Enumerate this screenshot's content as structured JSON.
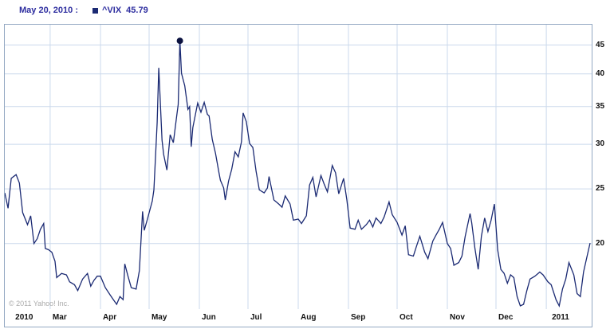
{
  "header": {
    "date_label": "May 20, 2010 :",
    "legend_symbol": "^VIX",
    "legend_value": "45.79"
  },
  "footer": {
    "copyright": "© 2011 Yahoo! Inc."
  },
  "colors": {
    "line": "#1b2a73",
    "marker": "#0b1240",
    "grid": "#cbd9ec",
    "border": "#93a8c2",
    "header_text": "#2d2d9f",
    "axis_text": "#111111",
    "copyright_text": "#aaaaaa"
  },
  "chart_data": {
    "type": "line",
    "title": "^VIX",
    "series_name": "^VIX",
    "legend": [
      {
        "name": "^VIX",
        "value": 45.79
      }
    ],
    "highlight_point": {
      "label": "May 20, 2010",
      "value": 45.79
    },
    "yscale": "log",
    "ylim": [
      15.3,
      48.9
    ],
    "yticks": [
      20,
      25,
      30,
      35,
      40,
      45
    ],
    "grid": true,
    "x_start_date": "2010-02-01",
    "x_range": [
      0,
      362
    ],
    "x_gridlines_days": [
      28,
      59,
      89,
      120,
      150,
      181,
      212,
      242,
      273,
      303,
      334
    ],
    "x_axis_labels": [
      {
        "label": "2010",
        "day": 5
      },
      {
        "label": "Mar",
        "day": 28
      },
      {
        "label": "Apr",
        "day": 59
      },
      {
        "label": "May",
        "day": 89
      },
      {
        "label": "Jun",
        "day": 120
      },
      {
        "label": "Jul",
        "day": 150
      },
      {
        "label": "Aug",
        "day": 181
      },
      {
        "label": "Sep",
        "day": 212
      },
      {
        "label": "Oct",
        "day": 242
      },
      {
        "label": "Nov",
        "day": 273
      },
      {
        "label": "Dec",
        "day": 303
      },
      {
        "label": "2011",
        "day": 336
      }
    ],
    "points": [
      [
        0,
        24.6
      ],
      [
        2,
        23.1
      ],
      [
        4,
        26.1
      ],
      [
        7,
        26.5
      ],
      [
        9,
        25.6
      ],
      [
        11,
        22.7
      ],
      [
        14,
        21.6
      ],
      [
        16,
        22.4
      ],
      [
        18,
        20.0
      ],
      [
        20,
        20.4
      ],
      [
        22,
        21.2
      ],
      [
        24,
        21.7
      ],
      [
        25,
        19.6
      ],
      [
        27,
        19.5
      ],
      [
        29,
        19.3
      ],
      [
        31,
        18.6
      ],
      [
        32,
        17.4
      ],
      [
        35,
        17.7
      ],
      [
        38,
        17.6
      ],
      [
        40,
        17.1
      ],
      [
        43,
        16.9
      ],
      [
        45,
        16.5
      ],
      [
        48,
        17.3
      ],
      [
        51,
        17.7
      ],
      [
        53,
        16.8
      ],
      [
        55,
        17.2
      ],
      [
        57,
        17.5
      ],
      [
        59,
        17.5
      ],
      [
        62,
        16.7
      ],
      [
        65,
        16.2
      ],
      [
        67,
        15.9
      ],
      [
        69,
        15.6
      ],
      [
        71,
        16.1
      ],
      [
        73,
        15.9
      ],
      [
        74,
        18.4
      ],
      [
        76,
        17.5
      ],
      [
        78,
        16.7
      ],
      [
        81,
        16.6
      ],
      [
        83,
        17.9
      ],
      [
        85,
        22.8
      ],
      [
        86,
        21.1
      ],
      [
        88,
        22.1
      ],
      [
        91,
        23.8
      ],
      [
        92,
        24.9
      ],
      [
        94,
        32.8
      ],
      [
        95,
        41.0
      ],
      [
        97,
        30.5
      ],
      [
        98,
        28.8
      ],
      [
        100,
        27.0
      ],
      [
        102,
        31.2
      ],
      [
        104,
        30.2
      ],
      [
        106,
        33.6
      ],
      [
        107,
        35.3
      ],
      [
        108,
        45.79
      ],
      [
        109,
        40.1
      ],
      [
        111,
        38.1
      ],
      [
        113,
        34.6
      ],
      [
        114,
        35.0
      ],
      [
        115,
        29.7
      ],
      [
        116,
        32.1
      ],
      [
        119,
        35.5
      ],
      [
        121,
        34.2
      ],
      [
        123,
        35.6
      ],
      [
        125,
        33.9
      ],
      [
        126,
        33.7
      ],
      [
        128,
        30.6
      ],
      [
        130,
        28.9
      ],
      [
        132,
        26.8
      ],
      [
        133,
        25.9
      ],
      [
        135,
        25.1
      ],
      [
        136,
        23.9
      ],
      [
        138,
        25.8
      ],
      [
        140,
        27.1
      ],
      [
        142,
        29.1
      ],
      [
        144,
        28.5
      ],
      [
        146,
        30.3
      ],
      [
        147,
        34.1
      ],
      [
        149,
        32.9
      ],
      [
        151,
        30.1
      ],
      [
        153,
        29.6
      ],
      [
        155,
        26.9
      ],
      [
        157,
        24.9
      ],
      [
        160,
        24.6
      ],
      [
        162,
        25.1
      ],
      [
        163,
        26.3
      ],
      [
        166,
        23.9
      ],
      [
        169,
        23.5
      ],
      [
        171,
        23.2
      ],
      [
        173,
        24.3
      ],
      [
        176,
        23.5
      ],
      [
        178,
        22.0
      ],
      [
        181,
        22.1
      ],
      [
        183,
        21.7
      ],
      [
        186,
        22.4
      ],
      [
        188,
        25.4
      ],
      [
        190,
        26.2
      ],
      [
        192,
        24.2
      ],
      [
        195,
        26.4
      ],
      [
        197,
        25.5
      ],
      [
        199,
        24.7
      ],
      [
        202,
        27.5
      ],
      [
        204,
        26.7
      ],
      [
        206,
        24.5
      ],
      [
        209,
        26.1
      ],
      [
        211,
        23.9
      ],
      [
        213,
        21.3
      ],
      [
        216,
        21.2
      ],
      [
        218,
        22.0
      ],
      [
        220,
        21.2
      ],
      [
        223,
        21.6
      ],
      [
        225,
        22.0
      ],
      [
        227,
        21.4
      ],
      [
        229,
        22.2
      ],
      [
        232,
        21.7
      ],
      [
        234,
        22.3
      ],
      [
        237,
        23.7
      ],
      [
        239,
        22.5
      ],
      [
        242,
        21.8
      ],
      [
        245,
        20.7
      ],
      [
        247,
        21.5
      ],
      [
        249,
        19.1
      ],
      [
        252,
        19.0
      ],
      [
        254,
        19.8
      ],
      [
        256,
        20.6
      ],
      [
        259,
        19.3
      ],
      [
        261,
        18.8
      ],
      [
        264,
        20.2
      ],
      [
        266,
        20.7
      ],
      [
        268,
        21.2
      ],
      [
        270,
        21.8
      ],
      [
        273,
        20.0
      ],
      [
        275,
        19.6
      ],
      [
        277,
        18.3
      ],
      [
        280,
        18.5
      ],
      [
        282,
        19.0
      ],
      [
        284,
        20.6
      ],
      [
        287,
        22.6
      ],
      [
        288,
        21.8
      ],
      [
        290,
        19.6
      ],
      [
        292,
        18.0
      ],
      [
        294,
        20.6
      ],
      [
        296,
        22.2
      ],
      [
        298,
        21.0
      ],
      [
        300,
        22.0
      ],
      [
        302,
        23.5
      ],
      [
        304,
        19.5
      ],
      [
        306,
        18.0
      ],
      [
        308,
        17.7
      ],
      [
        310,
        17.0
      ],
      [
        312,
        17.6
      ],
      [
        314,
        17.4
      ],
      [
        316,
        16.1
      ],
      [
        318,
        15.5
      ],
      [
        320,
        15.6
      ],
      [
        322,
        16.5
      ],
      [
        324,
        17.3
      ],
      [
        327,
        17.5
      ],
      [
        330,
        17.8
      ],
      [
        332,
        17.6
      ],
      [
        335,
        17.1
      ],
      [
        337,
        16.9
      ],
      [
        340,
        15.9
      ],
      [
        342,
        15.5
      ],
      [
        344,
        16.6
      ],
      [
        346,
        17.3
      ],
      [
        348,
        18.5
      ],
      [
        351,
        17.6
      ],
      [
        353,
        16.3
      ],
      [
        355,
        16.1
      ],
      [
        357,
        17.8
      ],
      [
        359,
        18.9
      ],
      [
        361,
        20.04
      ]
    ]
  }
}
